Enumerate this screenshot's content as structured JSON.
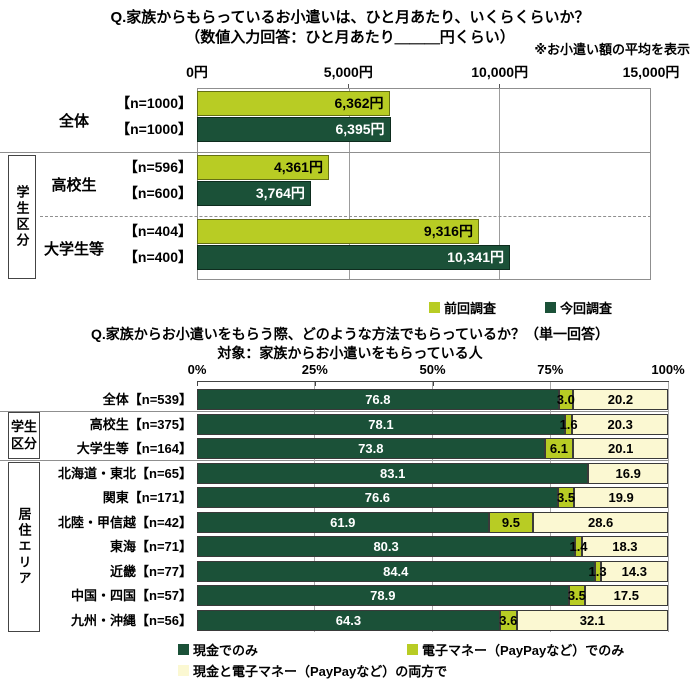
{
  "colors": {
    "previous_survey": "#b8cc24",
    "current_survey": "#1b5138",
    "cash_only": "#1b5138",
    "emoney_only": "#b8cc24",
    "both": "#fbf8d2"
  },
  "chart_data": [
    {
      "type": "bar",
      "orientation": "horizontal",
      "title": "Q.家族からもらっているお小遣いは、ひと月あたり、いくらくらいか？",
      "subtitle": "（数値入力回答：ひと月あたり＿＿＿円くらい）",
      "note": "※お小遣い額の平均を表示",
      "xlabel": "",
      "ylabel": "",
      "xlim": [
        0,
        15000
      ],
      "x_ticks": [
        "0円",
        "5,000円",
        "10,000円",
        "15,000円"
      ],
      "grid": "vertical",
      "legend_position": "bottom-right",
      "legend": [
        {
          "label": "前回調査",
          "color": "#b8cc24"
        },
        {
          "label": "今回調査",
          "color": "#1b5138"
        }
      ],
      "groups": [
        {
          "section": "",
          "label": "全体",
          "rows": [
            {
              "n": "【n=1000】",
              "series": "前回調査",
              "value": 6362,
              "value_label": "6,362円"
            },
            {
              "n": "【n=1000】",
              "series": "今回調査",
              "value": 6395,
              "value_label": "6,395円"
            }
          ]
        },
        {
          "section": "学生区分",
          "label": "高校生",
          "rows": [
            {
              "n": "【n=596】",
              "series": "前回調査",
              "value": 4361,
              "value_label": "4,361円"
            },
            {
              "n": "【n=600】",
              "series": "今回調査",
              "value": 3764,
              "value_label": "3,764円"
            }
          ]
        },
        {
          "section": "学生区分",
          "label": "大学生等",
          "rows": [
            {
              "n": "【n=404】",
              "series": "前回調査",
              "value": 9316,
              "value_label": "9,316円"
            },
            {
              "n": "【n=400】",
              "series": "今回調査",
              "value": 10341,
              "value_label": "10,341円"
            }
          ]
        }
      ]
    },
    {
      "type": "bar",
      "orientation": "horizontal",
      "stacked": true,
      "title": "Q.家族からお小遣いをもらう際、どのような方法でもらっているか？（単一回答）",
      "subtitle": "対象：家族からお小遣いをもらっている人",
      "xlabel": "",
      "ylabel": "",
      "xlim": [
        0,
        100
      ],
      "x_ticks": [
        "0%",
        "25%",
        "50%",
        "75%",
        "100%"
      ],
      "grid": "vertical",
      "legend_position": "bottom-left",
      "legend": [
        {
          "label": "現金でのみ",
          "color": "#1b5138"
        },
        {
          "label": "電子マネー（PayPayなど）でのみ",
          "color": "#b8cc24"
        },
        {
          "label": "現金と電子マネー（PayPayなど）の両方で",
          "color": "#fbf8d2"
        }
      ],
      "rows": [
        {
          "group": "",
          "label": "全体【n=539】",
          "values": [
            76.8,
            3.0,
            20.2
          ],
          "labels": [
            "76.8",
            "3.0",
            "20.2"
          ]
        },
        {
          "group": "学生区分",
          "label": "高校生【n=375】",
          "values": [
            78.1,
            1.6,
            20.3
          ],
          "labels": [
            "78.1",
            "1.6",
            "20.3"
          ]
        },
        {
          "group": "学生区分",
          "label": "大学生等【n=164】",
          "values": [
            73.8,
            6.1,
            20.1
          ],
          "labels": [
            "73.8",
            "6.1",
            "20.1"
          ]
        },
        {
          "group": "居住エリア",
          "label": "北海道・東北【n=65】",
          "values": [
            83.1,
            0,
            16.9
          ],
          "labels": [
            "83.1",
            "",
            "16.9"
          ]
        },
        {
          "group": "居住エリア",
          "label": "関東【n=171】",
          "values": [
            76.6,
            3.5,
            19.9
          ],
          "labels": [
            "76.6",
            "3.5",
            "19.9"
          ]
        },
        {
          "group": "居住エリア",
          "label": "北陸・甲信越【n=42】",
          "values": [
            61.9,
            9.5,
            28.6
          ],
          "labels": [
            "61.9",
            "9.5",
            "28.6"
          ]
        },
        {
          "group": "居住エリア",
          "label": "東海【n=71】",
          "values": [
            80.3,
            1.4,
            18.3
          ],
          "labels": [
            "80.3",
            "1.4",
            "18.3"
          ]
        },
        {
          "group": "居住エリア",
          "label": "近畿【n=77】",
          "values": [
            84.4,
            1.3,
            14.3
          ],
          "labels": [
            "84.4",
            "1.3",
            "14.3"
          ]
        },
        {
          "group": "居住エリア",
          "label": "中国・四国【n=57】",
          "values": [
            78.9,
            3.5,
            17.5
          ],
          "labels": [
            "78.9",
            "3.5",
            "17.5"
          ]
        },
        {
          "group": "居住エリア",
          "label": "九州・沖縄【n=56】",
          "values": [
            64.3,
            3.6,
            32.1
          ],
          "labels": [
            "64.3",
            "3.6",
            "32.1"
          ]
        }
      ]
    }
  ]
}
